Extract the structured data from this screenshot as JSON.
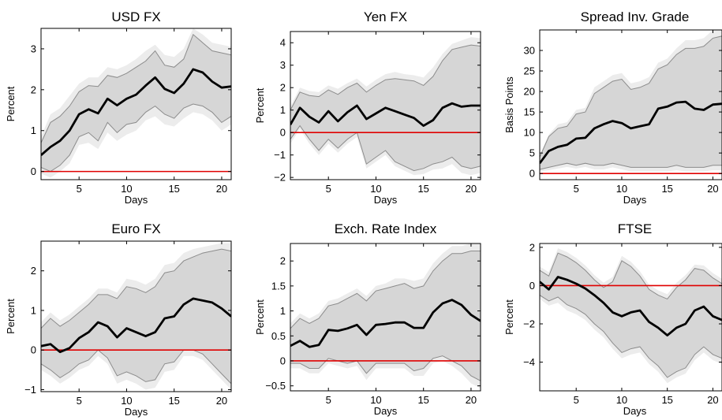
{
  "figure": {
    "panel_count": 6
  },
  "chart_data": [
    {
      "type": "area",
      "title": "USD FX",
      "xlabel": "Days",
      "ylabel": "Percent",
      "xlim": [
        1,
        21
      ],
      "ylim": [
        -0.2,
        3.5
      ],
      "xticks": [
        5,
        10,
        15,
        20
      ],
      "yticks": [
        0,
        1,
        2,
        3
      ],
      "zero_line": 0,
      "x": [
        1,
        2,
        3,
        4,
        5,
        6,
        7,
        8,
        9,
        10,
        11,
        12,
        13,
        14,
        15,
        16,
        17,
        18,
        19,
        20,
        21
      ],
      "series": [
        {
          "role": "point estimate",
          "values": [
            0.4,
            0.6,
            0.75,
            1.0,
            1.4,
            1.52,
            1.42,
            1.78,
            1.62,
            1.78,
            1.88,
            2.1,
            2.3,
            2.02,
            1.92,
            2.15,
            2.5,
            2.42,
            2.2,
            2.05,
            2.08
          ]
        },
        {
          "role": "inner band upper",
          "values": [
            0.7,
            1.2,
            1.35,
            1.6,
            1.95,
            2.1,
            2.08,
            2.35,
            2.3,
            2.4,
            2.55,
            2.7,
            2.95,
            2.6,
            2.55,
            2.75,
            3.35,
            3.15,
            2.95,
            2.9,
            2.85
          ]
        },
        {
          "role": "inner band lower",
          "values": [
            0.1,
            0.0,
            0.15,
            0.4,
            0.85,
            0.95,
            0.75,
            1.2,
            0.95,
            1.15,
            1.2,
            1.45,
            1.6,
            1.4,
            1.3,
            1.55,
            1.65,
            1.6,
            1.45,
            1.2,
            1.35
          ]
        },
        {
          "role": "outer band upper",
          "values": [
            0.85,
            1.4,
            1.55,
            1.85,
            2.15,
            2.3,
            2.3,
            2.55,
            2.5,
            2.6,
            2.75,
            2.95,
            3.1,
            2.85,
            2.8,
            3.0,
            3.5,
            3.35,
            3.15,
            3.1,
            3.05
          ]
        },
        {
          "role": "outer band lower",
          "values": [
            -0.05,
            -0.15,
            0.0,
            0.2,
            0.65,
            0.7,
            0.55,
            0.95,
            0.75,
            0.9,
            1.0,
            1.25,
            1.35,
            1.15,
            1.1,
            1.3,
            1.45,
            1.4,
            1.25,
            1.0,
            1.15
          ]
        }
      ]
    },
    {
      "type": "area",
      "title": "Yen FX",
      "xlabel": "Days",
      "ylabel": "Percent",
      "xlim": [
        1,
        21
      ],
      "ylim": [
        -2.1,
        4.5
      ],
      "xticks": [
        5,
        10,
        15,
        20
      ],
      "yticks": [
        -2,
        -1,
        0,
        1,
        2,
        3,
        4
      ],
      "zero_line": 0,
      "x": [
        1,
        2,
        3,
        4,
        5,
        6,
        7,
        8,
        9,
        10,
        11,
        12,
        13,
        14,
        15,
        16,
        17,
        18,
        19,
        20,
        21
      ],
      "series": [
        {
          "role": "point estimate",
          "values": [
            0.35,
            1.1,
            0.7,
            0.45,
            0.95,
            0.5,
            0.9,
            1.2,
            0.6,
            0.85,
            1.1,
            0.95,
            0.8,
            0.65,
            0.3,
            0.55,
            1.1,
            1.3,
            1.15,
            1.2,
            1.2
          ]
        },
        {
          "role": "inner band upper",
          "values": [
            1.0,
            1.8,
            1.65,
            1.6,
            1.9,
            1.7,
            2.0,
            2.2,
            1.8,
            2.1,
            2.35,
            2.4,
            2.35,
            2.3,
            2.1,
            2.5,
            3.2,
            3.7,
            3.8,
            3.9,
            3.85
          ]
        },
        {
          "role": "inner band lower",
          "values": [
            -0.3,
            0.3,
            -0.3,
            -0.8,
            -0.3,
            -0.7,
            -0.3,
            0.0,
            -1.4,
            -1.1,
            -0.8,
            -1.3,
            -1.5,
            -1.7,
            -1.6,
            -1.4,
            -1.3,
            -1.1,
            -1.5,
            -1.6,
            -1.5
          ]
        },
        {
          "role": "outer band upper",
          "values": [
            1.15,
            2.0,
            1.85,
            1.8,
            2.1,
            1.95,
            2.2,
            2.4,
            2.05,
            2.35,
            2.6,
            2.7,
            2.6,
            2.55,
            2.45,
            2.9,
            3.5,
            3.95,
            4.1,
            4.25,
            4.2
          ]
        },
        {
          "role": "outer band lower",
          "values": [
            -0.5,
            0.15,
            -0.5,
            -1.0,
            -0.5,
            -0.9,
            -0.5,
            -0.2,
            -1.6,
            -1.3,
            -1.0,
            -1.5,
            -1.7,
            -1.9,
            -1.85,
            -1.65,
            -1.6,
            -1.4,
            -1.8,
            -1.9,
            -1.8
          ]
        }
      ]
    },
    {
      "type": "area",
      "title": "Spread Inv. Grade",
      "xlabel": "Days",
      "ylabel": "Basis Points",
      "xlim": [
        1,
        21
      ],
      "ylim": [
        -1.5,
        35
      ],
      "xticks": [
        5,
        10,
        15,
        20
      ],
      "yticks": [
        0,
        5,
        10,
        15,
        20,
        25,
        30
      ],
      "zero_line": 0,
      "x": [
        1,
        2,
        3,
        4,
        5,
        6,
        7,
        8,
        9,
        10,
        11,
        12,
        13,
        14,
        15,
        16,
        17,
        18,
        19,
        20,
        21
      ],
      "series": [
        {
          "role": "point estimate",
          "values": [
            2.5,
            5.5,
            6.5,
            7.0,
            8.5,
            8.7,
            11.0,
            12.0,
            12.8,
            12.3,
            11.0,
            11.5,
            12.0,
            15.8,
            16.3,
            17.3,
            17.5,
            15.8,
            15.5,
            16.8,
            17.0
          ]
        },
        {
          "role": "inner band upper",
          "values": [
            4.0,
            9.0,
            11.0,
            11.5,
            14.5,
            15.0,
            19.5,
            21.0,
            22.5,
            23.0,
            20.5,
            21.0,
            22.0,
            25.5,
            26.5,
            29.0,
            30.5,
            30.5,
            31.0,
            33.0,
            33.5
          ]
        },
        {
          "role": "inner band lower",
          "values": [
            1.0,
            1.5,
            2.0,
            2.5,
            2.0,
            2.5,
            2.0,
            2.0,
            2.5,
            2.0,
            1.5,
            1.5,
            1.5,
            1.5,
            1.5,
            2.0,
            1.5,
            1.5,
            1.5,
            2.0,
            2.0
          ]
        },
        {
          "role": "outer band upper",
          "values": [
            4.5,
            9.5,
            12.0,
            12.5,
            15.5,
            16.0,
            21.0,
            22.5,
            24.0,
            24.5,
            22.0,
            22.5,
            23.5,
            27.0,
            28.0,
            30.5,
            32.5,
            32.5,
            33.0,
            35.0,
            35.0
          ]
        },
        {
          "role": "outer band lower",
          "values": [
            0.5,
            0.8,
            1.2,
            1.6,
            1.2,
            1.6,
            1.0,
            1.0,
            1.5,
            1.0,
            0.5,
            0.5,
            0.5,
            0.5,
            0.5,
            0.8,
            0.5,
            0.5,
            0.5,
            0.8,
            0.8
          ]
        }
      ]
    },
    {
      "type": "area",
      "title": "Euro FX",
      "xlabel": "Days",
      "ylabel": "Percent",
      "xlim": [
        1,
        21
      ],
      "ylim": [
        -1.05,
        2.75
      ],
      "xticks": [
        5,
        10,
        15,
        20
      ],
      "yticks": [
        -1,
        0,
        1,
        2
      ],
      "zero_line": 0,
      "x": [
        1,
        2,
        3,
        4,
        5,
        6,
        7,
        8,
        9,
        10,
        11,
        12,
        13,
        14,
        15,
        16,
        17,
        18,
        19,
        20,
        21
      ],
      "series": [
        {
          "role": "point estimate",
          "values": [
            0.1,
            0.15,
            -0.05,
            0.05,
            0.3,
            0.45,
            0.7,
            0.6,
            0.32,
            0.55,
            0.45,
            0.35,
            0.45,
            0.8,
            0.85,
            1.15,
            1.3,
            1.25,
            1.2,
            1.05,
            0.85
          ]
        },
        {
          "role": "inner band upper",
          "values": [
            0.55,
            0.8,
            0.6,
            0.75,
            0.95,
            1.15,
            1.4,
            1.4,
            1.3,
            1.6,
            1.55,
            1.45,
            1.6,
            1.95,
            2.0,
            2.25,
            2.35,
            2.45,
            2.5,
            2.55,
            2.5
          ]
        },
        {
          "role": "inner band lower",
          "values": [
            -0.35,
            -0.5,
            -0.7,
            -0.55,
            -0.35,
            -0.25,
            0.0,
            -0.2,
            -0.65,
            -0.55,
            -0.65,
            -0.8,
            -0.75,
            -0.35,
            -0.3,
            0.0,
            0.0,
            -0.1,
            -0.35,
            -0.6,
            -0.85
          ]
        },
        {
          "role": "outer band upper",
          "values": [
            0.7,
            0.95,
            0.75,
            0.9,
            1.1,
            1.3,
            1.55,
            1.55,
            1.45,
            1.8,
            1.75,
            1.65,
            1.8,
            2.15,
            2.2,
            2.45,
            2.55,
            2.6,
            2.65,
            2.7,
            2.7
          ]
        },
        {
          "role": "outer band lower",
          "values": [
            -0.5,
            -0.65,
            -0.85,
            -0.7,
            -0.5,
            -0.4,
            -0.15,
            -0.35,
            -0.85,
            -0.75,
            -0.85,
            -1.0,
            -0.95,
            -0.55,
            -0.5,
            -0.15,
            -0.15,
            -0.25,
            -0.5,
            -0.75,
            -1.0
          ]
        }
      ]
    },
    {
      "type": "area",
      "title": "Exch. Rate Index",
      "xlabel": "Days",
      "ylabel": "Percent",
      "xlim": [
        1,
        21
      ],
      "ylim": [
        -0.6,
        2.35
      ],
      "xticks": [
        5,
        10,
        15,
        20
      ],
      "yticks": [
        -0.5,
        0,
        0.5,
        1,
        1.5,
        2
      ],
      "zero_line": 0,
      "x": [
        1,
        2,
        3,
        4,
        5,
        6,
        7,
        8,
        9,
        10,
        11,
        12,
        13,
        14,
        15,
        16,
        17,
        18,
        19,
        20,
        21
      ],
      "series": [
        {
          "role": "point estimate",
          "values": [
            0.3,
            0.4,
            0.28,
            0.32,
            0.62,
            0.6,
            0.65,
            0.72,
            0.52,
            0.72,
            0.74,
            0.77,
            0.77,
            0.66,
            0.66,
            0.97,
            1.15,
            1.22,
            1.12,
            0.92,
            0.8
          ]
        },
        {
          "role": "inner band upper",
          "values": [
            0.65,
            0.85,
            0.75,
            0.85,
            1.1,
            1.15,
            1.25,
            1.35,
            1.2,
            1.4,
            1.45,
            1.5,
            1.55,
            1.45,
            1.5,
            1.8,
            2.0,
            2.15,
            2.15,
            2.2,
            2.2
          ]
        },
        {
          "role": "inner band lower",
          "values": [
            -0.05,
            -0.05,
            -0.15,
            -0.15,
            0.05,
            0.0,
            -0.05,
            0.0,
            -0.25,
            -0.05,
            -0.05,
            -0.05,
            -0.05,
            -0.2,
            -0.15,
            0.05,
            0.1,
            0.0,
            -0.1,
            -0.3,
            -0.4
          ]
        },
        {
          "role": "outer band upper",
          "values": [
            0.75,
            0.95,
            0.85,
            0.95,
            1.2,
            1.25,
            1.35,
            1.45,
            1.3,
            1.5,
            1.55,
            1.65,
            1.65,
            1.6,
            1.65,
            1.95,
            2.15,
            2.3,
            2.3,
            2.35,
            2.35
          ]
        },
        {
          "role": "outer band lower",
          "values": [
            -0.15,
            -0.15,
            -0.25,
            -0.25,
            -0.05,
            -0.1,
            -0.15,
            -0.1,
            -0.38,
            -0.15,
            -0.15,
            -0.15,
            -0.15,
            -0.3,
            -0.3,
            -0.05,
            0.0,
            -0.1,
            -0.25,
            -0.45,
            -0.55
          ]
        }
      ]
    },
    {
      "type": "area",
      "title": "FTSE",
      "xlabel": "Days",
      "ylabel": "Percent",
      "xlim": [
        1,
        21
      ],
      "ylim": [
        -5.5,
        2.2
      ],
      "xticks": [
        5,
        10,
        15,
        20
      ],
      "yticks": [
        -4,
        -2,
        0,
        2
      ],
      "zero_line": 0,
      "x": [
        1,
        2,
        3,
        4,
        5,
        6,
        7,
        8,
        9,
        10,
        11,
        12,
        13,
        14,
        15,
        16,
        17,
        18,
        19,
        20,
        21
      ],
      "series": [
        {
          "role": "point estimate",
          "values": [
            0.2,
            -0.2,
            0.45,
            0.3,
            0.1,
            -0.15,
            -0.5,
            -0.9,
            -1.4,
            -1.6,
            -1.4,
            -1.3,
            -1.9,
            -2.2,
            -2.6,
            -2.2,
            -2.0,
            -1.3,
            -1.1,
            -1.6,
            -1.8
          ]
        },
        {
          "role": "inner band upper",
          "values": [
            0.8,
            0.5,
            1.7,
            1.5,
            1.2,
            0.8,
            0.3,
            -0.1,
            0.2,
            1.3,
            1.0,
            0.5,
            -0.2,
            -0.5,
            -0.7,
            -0.1,
            0.3,
            0.9,
            0.8,
            0.4,
            0.1
          ]
        },
        {
          "role": "inner band lower",
          "values": [
            -0.5,
            -0.8,
            -0.6,
            -1.0,
            -1.2,
            -1.5,
            -2.0,
            -2.4,
            -3.0,
            -3.5,
            -3.3,
            -3.2,
            -3.8,
            -4.2,
            -4.8,
            -4.5,
            -4.3,
            -3.6,
            -3.2,
            -3.6,
            -3.8
          ]
        },
        {
          "role": "outer band upper",
          "values": [
            1.0,
            0.7,
            1.95,
            1.75,
            1.45,
            1.05,
            0.55,
            0.15,
            0.45,
            1.55,
            1.25,
            0.75,
            0.05,
            -0.25,
            -0.45,
            0.15,
            0.55,
            1.1,
            1.05,
            0.65,
            0.35
          ]
        },
        {
          "role": "outer band lower",
          "values": [
            -0.7,
            -1.05,
            -0.9,
            -1.3,
            -1.5,
            -1.8,
            -2.3,
            -2.7,
            -3.3,
            -3.8,
            -3.6,
            -3.5,
            -4.1,
            -4.5,
            -5.1,
            -4.8,
            -4.6,
            -3.9,
            -3.5,
            -3.9,
            -4.1
          ]
        }
      ]
    }
  ],
  "colors": {
    "outer_band": "#ececec",
    "inner_band": "#d6d6d6",
    "band_edge": "#8c8c8c",
    "estimate_line": "#000000",
    "zero_line": "#e00000",
    "axis": "#000000"
  }
}
